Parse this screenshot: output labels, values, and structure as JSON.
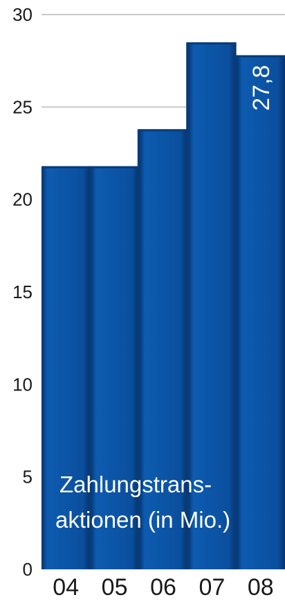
{
  "chart_data": {
    "type": "bar",
    "categories": [
      "04",
      "05",
      "06",
      "07",
      "08"
    ],
    "series": [
      {
        "name": "Zahlungstrans- aktionen (in Mio.)",
        "name_lines": [
          "Zahlungstrans-",
          "aktionen (in Mio.)"
        ],
        "values": [
          21.8,
          21.8,
          23.8,
          28.5,
          27.8
        ]
      }
    ],
    "data_labels": [
      {
        "category": "08",
        "text": "27,8"
      }
    ],
    "yticks": [
      "0",
      "5",
      "10",
      "15",
      "20",
      "25",
      "30"
    ],
    "ylim": [
      0,
      30
    ],
    "grid": true,
    "colors": {
      "bar": "#0b4f9e",
      "bar_dark": "#083b78",
      "grid": "#c8c8c8",
      "text": "#1a1a1a",
      "inner_text": "#ffffff"
    },
    "title": "",
    "xlabel": "",
    "ylabel": ""
  }
}
